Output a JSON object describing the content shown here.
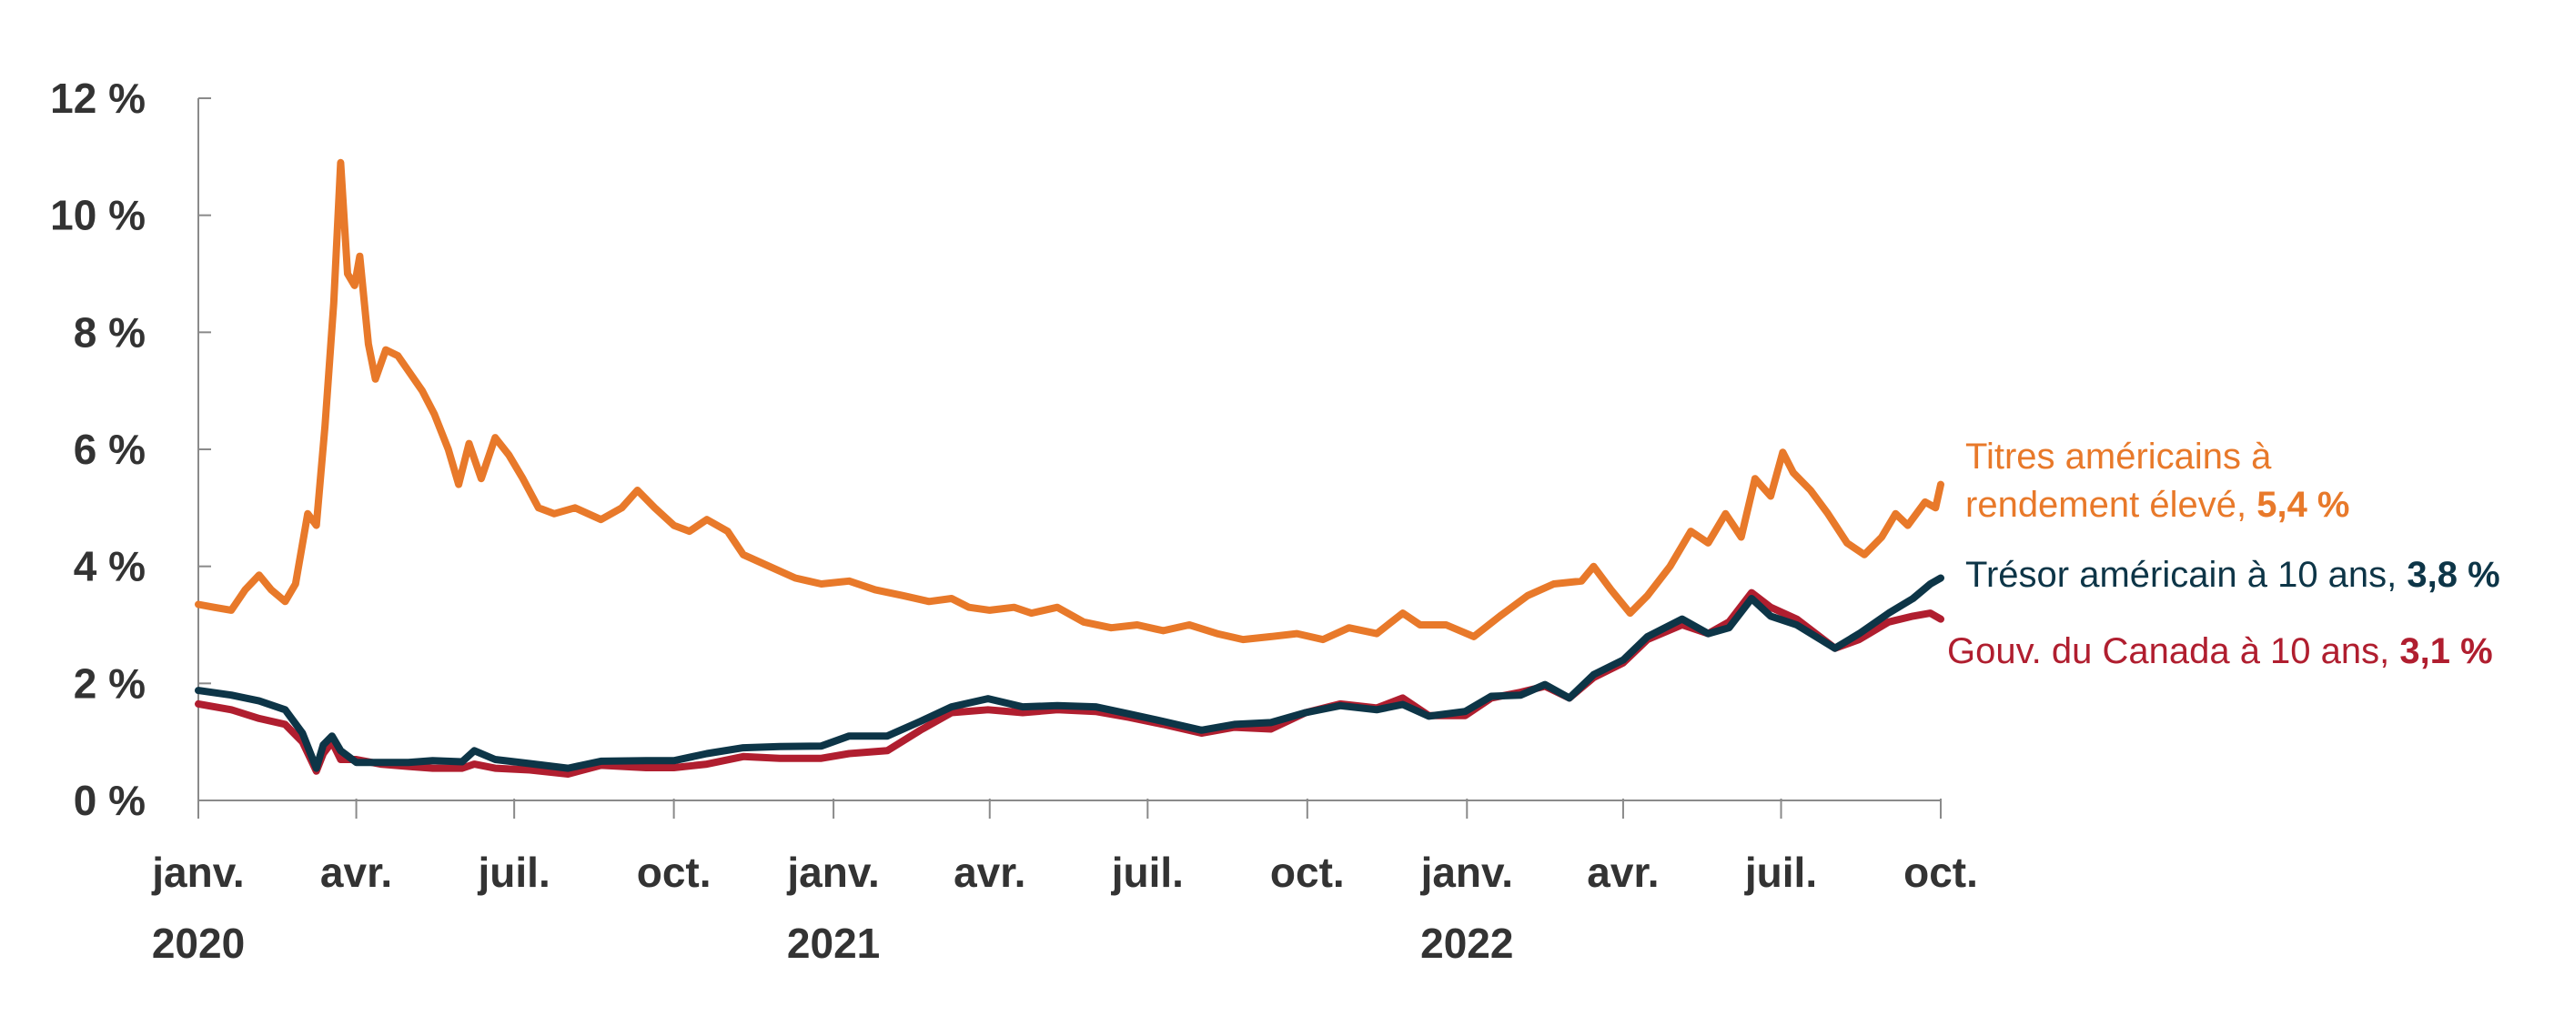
{
  "chart_data": {
    "type": "line",
    "title": "",
    "xlabel": "",
    "ylabel": "",
    "ylim": [
      0,
      12
    ],
    "y_ticks": [
      0,
      2,
      4,
      6,
      8,
      10,
      12
    ],
    "y_tick_labels": [
      "0 %",
      "2 %",
      "4 %",
      "6 %",
      "8 %",
      "10 %",
      "12 %"
    ],
    "x_ticks": [
      {
        "date": "2020-01-01",
        "label": "janv.",
        "year": "2020"
      },
      {
        "date": "2020-04-01",
        "label": "avr.",
        "year": ""
      },
      {
        "date": "2020-07-01",
        "label": "juil.",
        "year": ""
      },
      {
        "date": "2020-10-01",
        "label": "oct.",
        "year": ""
      },
      {
        "date": "2021-01-01",
        "label": "janv.",
        "year": "2021"
      },
      {
        "date": "2021-04-01",
        "label": "avr.",
        "year": ""
      },
      {
        "date": "2021-07-01",
        "label": "juil.",
        "year": ""
      },
      {
        "date": "2021-10-01",
        "label": "oct.",
        "year": ""
      },
      {
        "date": "2022-01-01",
        "label": "janv.",
        "year": "2022"
      },
      {
        "date": "2022-04-01",
        "label": "avr.",
        "year": ""
      },
      {
        "date": "2022-07-01",
        "label": "juil.",
        "year": ""
      },
      {
        "date": "2022-10-01",
        "label": "oct.",
        "year": ""
      }
    ],
    "xlim": [
      "2020-01-01",
      "2022-10-01"
    ],
    "grid": false,
    "legend": "labels at right end of lines",
    "series": [
      {
        "name": "Titres américains à rendement élevé",
        "label_line1": "Titres américains à",
        "label_line2": "rendement élevé, ",
        "end_value": "5,4 %",
        "color": "#E8792A",
        "points": [
          [
            "2020-01-01",
            3.35
          ],
          [
            "2020-01-10",
            3.3
          ],
          [
            "2020-01-20",
            3.25
          ],
          [
            "2020-01-28",
            3.6
          ],
          [
            "2020-02-05",
            3.85
          ],
          [
            "2020-02-12",
            3.6
          ],
          [
            "2020-02-20",
            3.4
          ],
          [
            "2020-02-26",
            3.7
          ],
          [
            "2020-03-04",
            4.9
          ],
          [
            "2020-03-09",
            4.7
          ],
          [
            "2020-03-14",
            6.4
          ],
          [
            "2020-03-19",
            8.5
          ],
          [
            "2020-03-23",
            10.9
          ],
          [
            "2020-03-27",
            9.0
          ],
          [
            "2020-03-31",
            8.8
          ],
          [
            "2020-04-03",
            9.3
          ],
          [
            "2020-04-08",
            7.8
          ],
          [
            "2020-04-12",
            7.2
          ],
          [
            "2020-04-18",
            7.7
          ],
          [
            "2020-04-25",
            7.6
          ],
          [
            "2020-05-02",
            7.3
          ],
          [
            "2020-05-09",
            7.0
          ],
          [
            "2020-05-16",
            6.6
          ],
          [
            "2020-05-24",
            6.0
          ],
          [
            "2020-05-30",
            5.4
          ],
          [
            "2020-06-05",
            6.1
          ],
          [
            "2020-06-12",
            5.5
          ],
          [
            "2020-06-20",
            6.2
          ],
          [
            "2020-06-28",
            5.9
          ],
          [
            "2020-07-06",
            5.5
          ],
          [
            "2020-07-15",
            5.0
          ],
          [
            "2020-07-24",
            4.9
          ],
          [
            "2020-08-05",
            5.0
          ],
          [
            "2020-08-20",
            4.8
          ],
          [
            "2020-09-01",
            5.0
          ],
          [
            "2020-09-10",
            5.3
          ],
          [
            "2020-09-20",
            5.0
          ],
          [
            "2020-10-01",
            4.7
          ],
          [
            "2020-10-10",
            4.6
          ],
          [
            "2020-10-20",
            4.8
          ],
          [
            "2020-11-01",
            4.6
          ],
          [
            "2020-11-10",
            4.2
          ],
          [
            "2020-11-25",
            4.0
          ],
          [
            "2020-12-10",
            3.8
          ],
          [
            "2020-12-25",
            3.7
          ],
          [
            "2021-01-10",
            3.75
          ],
          [
            "2021-01-25",
            3.6
          ],
          [
            "2021-02-10",
            3.5
          ],
          [
            "2021-02-25",
            3.4
          ],
          [
            "2021-03-10",
            3.45
          ],
          [
            "2021-03-20",
            3.3
          ],
          [
            "2021-04-01",
            3.25
          ],
          [
            "2021-04-15",
            3.3
          ],
          [
            "2021-04-25",
            3.2
          ],
          [
            "2021-05-10",
            3.3
          ],
          [
            "2021-05-25",
            3.05
          ],
          [
            "2021-06-10",
            2.95
          ],
          [
            "2021-06-25",
            3.0
          ],
          [
            "2021-07-10",
            2.9
          ],
          [
            "2021-07-25",
            3.0
          ],
          [
            "2021-08-10",
            2.85
          ],
          [
            "2021-08-25",
            2.75
          ],
          [
            "2021-09-10",
            2.8
          ],
          [
            "2021-09-25",
            2.85
          ],
          [
            "2021-10-10",
            2.75
          ],
          [
            "2021-10-25",
            2.95
          ],
          [
            "2021-11-10",
            2.85
          ],
          [
            "2021-11-25",
            3.2
          ],
          [
            "2021-12-05",
            3.0
          ],
          [
            "2021-12-20",
            3.0
          ],
          [
            "2022-01-05",
            2.8
          ],
          [
            "2022-01-20",
            3.15
          ],
          [
            "2022-02-05",
            3.5
          ],
          [
            "2022-02-20",
            3.7
          ],
          [
            "2022-03-08",
            3.75
          ],
          [
            "2022-03-15",
            4.0
          ],
          [
            "2022-03-25",
            3.6
          ],
          [
            "2022-04-05",
            3.2
          ],
          [
            "2022-04-15",
            3.5
          ],
          [
            "2022-04-28",
            4.0
          ],
          [
            "2022-05-10",
            4.6
          ],
          [
            "2022-05-20",
            4.4
          ],
          [
            "2022-05-30",
            4.9
          ],
          [
            "2022-06-08",
            4.5
          ],
          [
            "2022-06-16",
            5.5
          ],
          [
            "2022-06-25",
            5.2
          ],
          [
            "2022-07-02",
            5.95
          ],
          [
            "2022-07-08",
            5.6
          ],
          [
            "2022-07-18",
            5.3
          ],
          [
            "2022-07-28",
            4.9
          ],
          [
            "2022-08-08",
            4.4
          ],
          [
            "2022-08-18",
            4.2
          ],
          [
            "2022-08-28",
            4.5
          ],
          [
            "2022-09-05",
            4.9
          ],
          [
            "2022-09-12",
            4.7
          ],
          [
            "2022-09-22",
            5.1
          ],
          [
            "2022-09-28",
            5.0
          ],
          [
            "2022-10-01",
            5.4
          ]
        ]
      },
      {
        "name": "Trésor américain à 10 ans",
        "label_line1": "Trésor américain à 10 ans, ",
        "label_line2": "",
        "end_value": "3,8 %",
        "color": "#0D3547",
        "points": [
          [
            "2020-01-01",
            1.88
          ],
          [
            "2020-01-20",
            1.8
          ],
          [
            "2020-02-05",
            1.7
          ],
          [
            "2020-02-20",
            1.55
          ],
          [
            "2020-03-01",
            1.15
          ],
          [
            "2020-03-09",
            0.55
          ],
          [
            "2020-03-13",
            0.95
          ],
          [
            "2020-03-18",
            1.1
          ],
          [
            "2020-03-23",
            0.85
          ],
          [
            "2020-04-01",
            0.65
          ],
          [
            "2020-04-15",
            0.65
          ],
          [
            "2020-05-01",
            0.65
          ],
          [
            "2020-05-15",
            0.68
          ],
          [
            "2020-06-01",
            0.66
          ],
          [
            "2020-06-08",
            0.85
          ],
          [
            "2020-06-20",
            0.7
          ],
          [
            "2020-07-10",
            0.63
          ],
          [
            "2020-08-01",
            0.55
          ],
          [
            "2020-08-20",
            0.67
          ],
          [
            "2020-09-15",
            0.68
          ],
          [
            "2020-10-01",
            0.68
          ],
          [
            "2020-10-20",
            0.8
          ],
          [
            "2020-11-10",
            0.9
          ],
          [
            "2020-12-01",
            0.92
          ],
          [
            "2020-12-25",
            0.93
          ],
          [
            "2021-01-10",
            1.1
          ],
          [
            "2021-02-01",
            1.1
          ],
          [
            "2021-02-20",
            1.35
          ],
          [
            "2021-03-10",
            1.6
          ],
          [
            "2021-03-31",
            1.74
          ],
          [
            "2021-04-20",
            1.6
          ],
          [
            "2021-05-10",
            1.62
          ],
          [
            "2021-06-01",
            1.6
          ],
          [
            "2021-06-20",
            1.48
          ],
          [
            "2021-07-10",
            1.35
          ],
          [
            "2021-08-01",
            1.2
          ],
          [
            "2021-08-20",
            1.3
          ],
          [
            "2021-09-10",
            1.33
          ],
          [
            "2021-09-30",
            1.5
          ],
          [
            "2021-10-20",
            1.62
          ],
          [
            "2021-11-10",
            1.55
          ],
          [
            "2021-11-25",
            1.64
          ],
          [
            "2021-12-10",
            1.44
          ],
          [
            "2021-12-31",
            1.52
          ],
          [
            "2022-01-15",
            1.78
          ],
          [
            "2022-02-01",
            1.8
          ],
          [
            "2022-02-15",
            1.98
          ],
          [
            "2022-03-01",
            1.75
          ],
          [
            "2022-03-15",
            2.15
          ],
          [
            "2022-04-01",
            2.4
          ],
          [
            "2022-04-15",
            2.8
          ],
          [
            "2022-05-05",
            3.1
          ],
          [
            "2022-05-20",
            2.85
          ],
          [
            "2022-06-01",
            2.95
          ],
          [
            "2022-06-14",
            3.45
          ],
          [
            "2022-06-25",
            3.15
          ],
          [
            "2022-07-10",
            3.0
          ],
          [
            "2022-08-01",
            2.6
          ],
          [
            "2022-08-15",
            2.85
          ],
          [
            "2022-09-01",
            3.2
          ],
          [
            "2022-09-15",
            3.45
          ],
          [
            "2022-09-25",
            3.7
          ],
          [
            "2022-10-01",
            3.8
          ]
        ]
      },
      {
        "name": "Gouv. du Canada à 10 ans",
        "label_line1": "Gouv. du Canada à 10 ans, ",
        "label_line2": "",
        "end_value": "3,1 %",
        "color": "#B01E2F",
        "points": [
          [
            "2020-01-01",
            1.65
          ],
          [
            "2020-01-20",
            1.55
          ],
          [
            "2020-02-05",
            1.4
          ],
          [
            "2020-02-20",
            1.3
          ],
          [
            "2020-03-01",
            1.0
          ],
          [
            "2020-03-09",
            0.5
          ],
          [
            "2020-03-13",
            0.8
          ],
          [
            "2020-03-18",
            1.0
          ],
          [
            "2020-03-23",
            0.7
          ],
          [
            "2020-04-01",
            0.7
          ],
          [
            "2020-04-15",
            0.62
          ],
          [
            "2020-05-01",
            0.58
          ],
          [
            "2020-05-15",
            0.55
          ],
          [
            "2020-06-01",
            0.55
          ],
          [
            "2020-06-08",
            0.62
          ],
          [
            "2020-06-20",
            0.55
          ],
          [
            "2020-07-10",
            0.52
          ],
          [
            "2020-08-01",
            0.45
          ],
          [
            "2020-08-20",
            0.6
          ],
          [
            "2020-09-15",
            0.56
          ],
          [
            "2020-10-01",
            0.56
          ],
          [
            "2020-10-20",
            0.62
          ],
          [
            "2020-11-10",
            0.75
          ],
          [
            "2020-12-01",
            0.72
          ],
          [
            "2020-12-25",
            0.72
          ],
          [
            "2021-01-10",
            0.8
          ],
          [
            "2021-02-01",
            0.85
          ],
          [
            "2021-02-20",
            1.2
          ],
          [
            "2021-03-10",
            1.5
          ],
          [
            "2021-03-31",
            1.55
          ],
          [
            "2021-04-20",
            1.5
          ],
          [
            "2021-05-10",
            1.55
          ],
          [
            "2021-06-01",
            1.52
          ],
          [
            "2021-06-20",
            1.42
          ],
          [
            "2021-07-10",
            1.3
          ],
          [
            "2021-08-01",
            1.15
          ],
          [
            "2021-08-20",
            1.25
          ],
          [
            "2021-09-10",
            1.22
          ],
          [
            "2021-09-30",
            1.5
          ],
          [
            "2021-10-20",
            1.65
          ],
          [
            "2021-11-10",
            1.58
          ],
          [
            "2021-11-25",
            1.75
          ],
          [
            "2021-12-10",
            1.45
          ],
          [
            "2021-12-31",
            1.45
          ],
          [
            "2022-01-15",
            1.75
          ],
          [
            "2022-02-01",
            1.85
          ],
          [
            "2022-02-15",
            1.95
          ],
          [
            "2022-03-01",
            1.75
          ],
          [
            "2022-03-15",
            2.1
          ],
          [
            "2022-04-01",
            2.35
          ],
          [
            "2022-04-15",
            2.75
          ],
          [
            "2022-05-05",
            3.0
          ],
          [
            "2022-05-20",
            2.85
          ],
          [
            "2022-06-01",
            3.05
          ],
          [
            "2022-06-14",
            3.55
          ],
          [
            "2022-06-25",
            3.3
          ],
          [
            "2022-07-10",
            3.1
          ],
          [
            "2022-08-01",
            2.6
          ],
          [
            "2022-08-15",
            2.75
          ],
          [
            "2022-09-01",
            3.05
          ],
          [
            "2022-09-15",
            3.15
          ],
          [
            "2022-09-25",
            3.2
          ],
          [
            "2022-10-01",
            3.1
          ]
        ]
      }
    ]
  }
}
